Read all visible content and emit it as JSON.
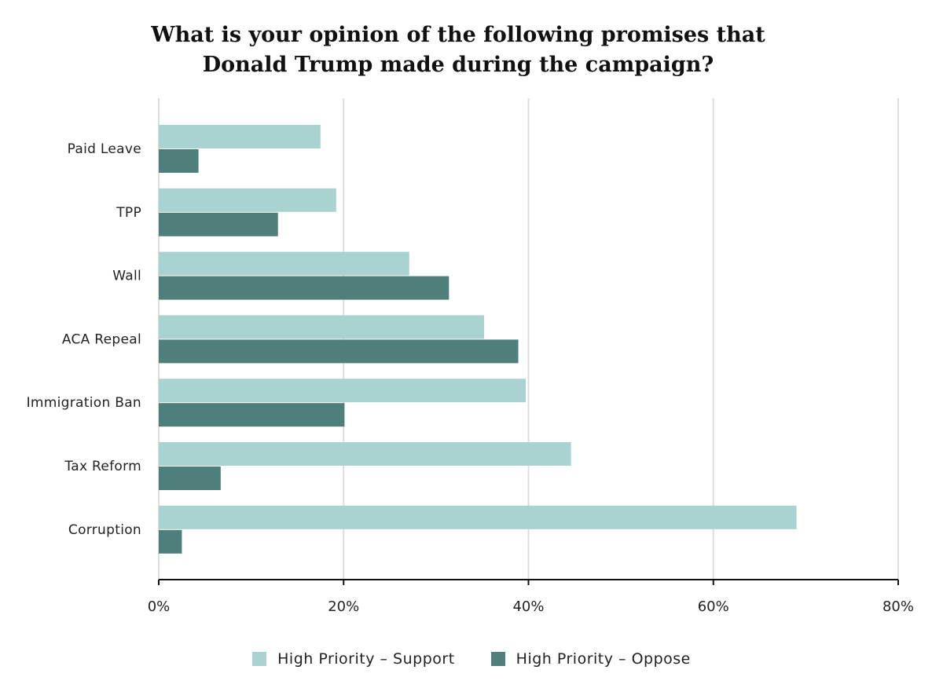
{
  "chart_data": {
    "type": "bar",
    "orientation": "horizontal",
    "title": [
      "What is your opinion of the following promises that",
      "Donald Trump made during the campaign?"
    ],
    "categories": [
      "Paid Leave",
      "TPP",
      "Wall",
      "ACA Repeal",
      "Immigration Ban",
      "Tax Reform",
      "Corruption"
    ],
    "series": [
      {
        "name": "High Priority – Support",
        "color": "#a8d3d0",
        "values": [
          17.5,
          19.2,
          27.1,
          35.2,
          39.7,
          44.6,
          69.0
        ]
      },
      {
        "name": "High Priority – Oppose",
        "color": "#4f7f7b",
        "values": [
          4.3,
          12.9,
          31.4,
          38.9,
          20.1,
          6.7,
          2.5
        ]
      }
    ],
    "xlim": [
      0,
      80
    ],
    "xticks": [
      0,
      20,
      40,
      60,
      80
    ],
    "xtick_labels": [
      "0%",
      "20%",
      "40%",
      "60%",
      "80%"
    ],
    "grid": "vertical",
    "legend_position": "bottom"
  }
}
